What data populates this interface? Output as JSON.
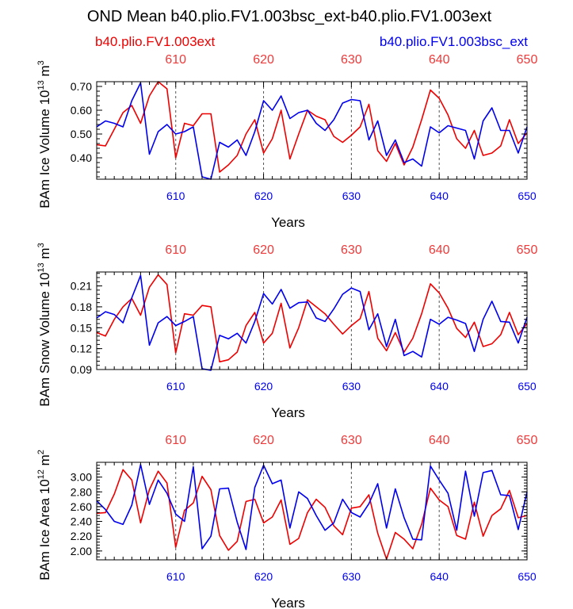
{
  "title": "OND Mean b40.plio.FV1.003bsc_ext-b40.plio.FV1.003ext",
  "legend": [
    {
      "name": "b40.plio.FV1.003ext",
      "color": "#ee0000"
    },
    {
      "name": "b40.plio.FV1.003bsc_ext",
      "color": "#0000ee"
    }
  ],
  "chart_data": [
    {
      "type": "line",
      "ylabel_main": "BAm Ice Volume 10",
      "ylabel_exp": "13",
      "ylabel_unit": " m",
      "ylabel_unit_exp": "3",
      "xlabel": "Years",
      "xlim": [
        601,
        650
      ],
      "ylim": [
        0.31,
        0.72
      ],
      "yticks": [
        0.4,
        0.5,
        0.6,
        0.7
      ],
      "ytick_labels": [
        "0.40",
        "0.50",
        "0.60",
        "0.70"
      ],
      "xticks": [
        610,
        620,
        630,
        640,
        650
      ],
      "xtick_labels": [
        "610",
        "620",
        "630",
        "640",
        "650"
      ],
      "x": [
        601,
        602,
        603,
        604,
        605,
        606,
        607,
        608,
        609,
        610,
        611,
        612,
        613,
        614,
        615,
        616,
        617,
        618,
        619,
        620,
        621,
        622,
        623,
        624,
        625,
        626,
        627,
        628,
        629,
        630,
        631,
        632,
        633,
        634,
        635,
        636,
        637,
        638,
        639,
        640,
        641,
        642,
        643,
        644,
        645,
        646,
        647,
        648,
        649,
        650
      ],
      "series": [
        {
          "name": "b40.plio.FV1.003ext",
          "color": "#ee0000",
          "values": [
            0.455,
            0.45,
            0.52,
            0.59,
            0.62,
            0.545,
            0.66,
            0.72,
            0.69,
            0.4,
            0.545,
            0.535,
            0.585,
            0.585,
            0.34,
            0.37,
            0.41,
            0.5,
            0.56,
            0.42,
            0.48,
            0.6,
            0.395,
            0.5,
            0.6,
            0.575,
            0.56,
            0.49,
            0.465,
            0.495,
            0.53,
            0.625,
            0.43,
            0.385,
            0.46,
            0.37,
            0.445,
            0.56,
            0.685,
            0.65,
            0.58,
            0.48,
            0.44,
            0.515,
            0.41,
            0.42,
            0.45,
            0.56,
            0.46,
            0.505
          ]
        },
        {
          "name": "b40.plio.FV1.003bsc_ext",
          "color": "#0000ee",
          "values": [
            0.53,
            0.555,
            0.545,
            0.53,
            0.64,
            0.715,
            0.415,
            0.51,
            0.54,
            0.5,
            0.51,
            0.53,
            0.32,
            0.31,
            0.465,
            0.445,
            0.475,
            0.41,
            0.51,
            0.64,
            0.6,
            0.66,
            0.565,
            0.59,
            0.6,
            0.545,
            0.515,
            0.56,
            0.63,
            0.645,
            0.64,
            0.475,
            0.555,
            0.41,
            0.475,
            0.38,
            0.395,
            0.365,
            0.53,
            0.505,
            0.535,
            0.525,
            0.515,
            0.395,
            0.555,
            0.61,
            0.515,
            0.515,
            0.42,
            0.53
          ]
        }
      ]
    },
    {
      "type": "line",
      "ylabel_main": "BAm Snow Volume 10",
      "ylabel_exp": "13",
      "ylabel_unit": " m",
      "ylabel_unit_exp": "3",
      "xlabel": "Years",
      "xlim": [
        601,
        650
      ],
      "ylim": [
        0.09,
        0.23
      ],
      "yticks": [
        0.09,
        0.12,
        0.15,
        0.18,
        0.21
      ],
      "ytick_labels": [
        "0.09",
        "0.12",
        "0.15",
        "0.18",
        "0.21"
      ],
      "xticks": [
        610,
        620,
        630,
        640,
        650
      ],
      "xtick_labels": [
        "610",
        "620",
        "630",
        "640",
        "650"
      ],
      "x": [
        601,
        602,
        603,
        604,
        605,
        606,
        607,
        608,
        609,
        610,
        611,
        612,
        613,
        614,
        615,
        616,
        617,
        618,
        619,
        620,
        621,
        622,
        623,
        624,
        625,
        626,
        627,
        628,
        629,
        630,
        631,
        632,
        633,
        634,
        635,
        636,
        637,
        638,
        639,
        640,
        641,
        642,
        643,
        644,
        645,
        646,
        647,
        648,
        649,
        650
      ],
      "series": [
        {
          "name": "b40.plio.FV1.003ext",
          "color": "#ee0000",
          "values": [
            0.143,
            0.138,
            0.162,
            0.18,
            0.192,
            0.168,
            0.208,
            0.226,
            0.212,
            0.114,
            0.17,
            0.168,
            0.182,
            0.18,
            0.101,
            0.104,
            0.115,
            0.153,
            0.172,
            0.128,
            0.142,
            0.185,
            0.121,
            0.15,
            0.19,
            0.18,
            0.17,
            0.155,
            0.141,
            0.153,
            0.163,
            0.202,
            0.135,
            0.117,
            0.143,
            0.115,
            0.135,
            0.17,
            0.213,
            0.2,
            0.178,
            0.149,
            0.136,
            0.158,
            0.123,
            0.127,
            0.14,
            0.172,
            0.14,
            0.156
          ]
        },
        {
          "name": "b40.plio.FV1.003bsc_ext",
          "color": "#0000ee",
          "values": [
            0.164,
            0.173,
            0.169,
            0.157,
            0.193,
            0.225,
            0.125,
            0.157,
            0.166,
            0.153,
            0.159,
            0.166,
            0.091,
            0.089,
            0.139,
            0.134,
            0.142,
            0.128,
            0.159,
            0.199,
            0.184,
            0.205,
            0.178,
            0.186,
            0.187,
            0.164,
            0.159,
            0.177,
            0.198,
            0.207,
            0.202,
            0.147,
            0.17,
            0.123,
            0.162,
            0.11,
            0.116,
            0.108,
            0.162,
            0.155,
            0.165,
            0.161,
            0.156,
            0.116,
            0.162,
            0.188,
            0.159,
            0.158,
            0.128,
            0.165
          ]
        }
      ]
    },
    {
      "type": "line",
      "ylabel_main": "BAm Ice Area 10",
      "ylabel_exp": "12",
      "ylabel_unit": " m",
      "ylabel_unit_exp": "2",
      "xlabel": "Years",
      "xlim": [
        601,
        650
      ],
      "ylim": [
        1.88,
        3.2
      ],
      "yticks": [
        2.0,
        2.2,
        2.4,
        2.6,
        2.8,
        3.0
      ],
      "ytick_labels": [
        "2.00",
        "2.20",
        "2.40",
        "2.60",
        "2.80",
        "3.00"
      ],
      "xticks": [
        610,
        620,
        630,
        640,
        650
      ],
      "xtick_labels": [
        "610",
        "620",
        "630",
        "640",
        "650"
      ],
      "x": [
        601,
        602,
        603,
        604,
        605,
        606,
        607,
        608,
        609,
        610,
        611,
        612,
        613,
        614,
        615,
        616,
        617,
        618,
        619,
        620,
        621,
        622,
        623,
        624,
        625,
        626,
        627,
        628,
        629,
        630,
        631,
        632,
        633,
        634,
        635,
        636,
        637,
        638,
        639,
        640,
        641,
        642,
        643,
        644,
        645,
        646,
        647,
        648,
        649,
        650
      ],
      "series": [
        {
          "name": "b40.plio.FV1.003ext",
          "color": "#ee0000",
          "values": [
            2.51,
            2.52,
            2.77,
            3.1,
            2.96,
            2.38,
            2.83,
            3.08,
            2.92,
            2.05,
            2.55,
            2.65,
            3.01,
            2.83,
            2.21,
            2.01,
            2.13,
            2.67,
            2.7,
            2.38,
            2.46,
            2.69,
            2.09,
            2.17,
            2.52,
            2.7,
            2.59,
            2.34,
            2.22,
            2.58,
            2.6,
            2.76,
            2.24,
            1.89,
            2.25,
            2.16,
            2.03,
            2.36,
            2.85,
            2.69,
            2.6,
            2.21,
            2.16,
            2.66,
            2.2,
            2.48,
            2.57,
            2.82,
            2.45,
            2.48
          ]
        },
        {
          "name": "b40.plio.FV1.003bsc_ext",
          "color": "#0000ee",
          "values": [
            2.68,
            2.56,
            2.4,
            2.36,
            2.62,
            3.17,
            2.63,
            2.96,
            2.78,
            2.5,
            2.4,
            3.14,
            2.03,
            2.2,
            2.84,
            2.85,
            2.39,
            2.02,
            2.86,
            3.16,
            2.91,
            2.96,
            2.31,
            2.8,
            2.71,
            2.48,
            2.28,
            2.38,
            2.7,
            2.52,
            2.46,
            2.64,
            2.91,
            2.31,
            2.84,
            2.45,
            2.16,
            2.15,
            3.15,
            2.96,
            2.78,
            2.28,
            3.08,
            2.47,
            3.06,
            3.09,
            2.76,
            2.75,
            2.29,
            2.8
          ]
        }
      ]
    }
  ]
}
